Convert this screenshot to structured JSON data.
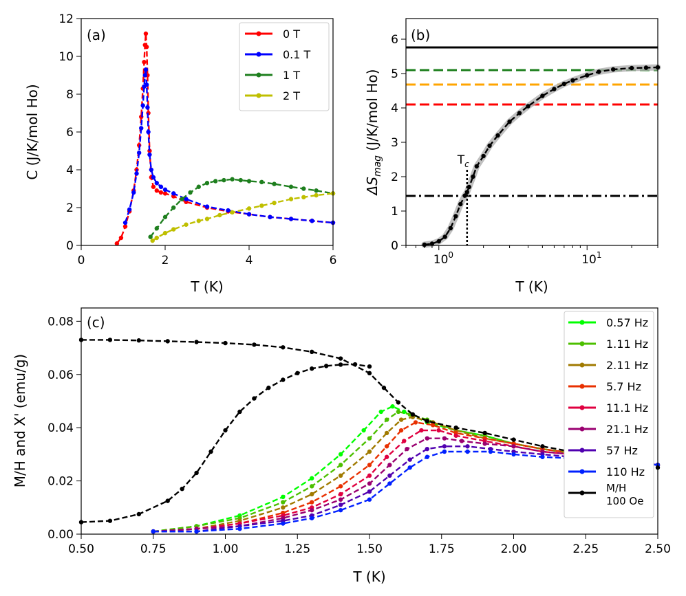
{
  "chart_data": [
    {
      "panel": "(a)",
      "type": "line",
      "xlabel": "T (K)",
      "ylabel": "C (J/K/mol Ho)",
      "xlim": [
        0,
        6
      ],
      "ylim": [
        0,
        12
      ],
      "xticks": [
        "0",
        "2",
        "4",
        "6"
      ],
      "yticks": [
        "0",
        "2",
        "4",
        "6",
        "8",
        "10",
        "12"
      ],
      "legend_position": "top-right",
      "series": [
        {
          "name": "0 T",
          "color": "#ff0000",
          "x": [
            0.85,
            0.95,
            1.05,
            1.15,
            1.25,
            1.32,
            1.38,
            1.43,
            1.47,
            1.5,
            1.52,
            1.54,
            1.56,
            1.58,
            1.6,
            1.63,
            1.67,
            1.72,
            1.8,
            1.9,
            2.0,
            2.2,
            2.5,
            3.0,
            3.5,
            4.0,
            4.5,
            5.0,
            5.5,
            6.0
          ],
          "y": [
            0.1,
            0.4,
            1.0,
            1.8,
            2.9,
            4.0,
            5.3,
            6.8,
            8.3,
            9.7,
            10.6,
            11.2,
            10.5,
            9.0,
            7.0,
            5.0,
            3.6,
            3.1,
            2.9,
            2.8,
            2.75,
            2.6,
            2.3,
            2.0,
            1.8,
            1.65,
            1.5,
            1.4,
            1.3,
            1.2
          ]
        },
        {
          "name": "0.1 T",
          "color": "#0000ff",
          "x": [
            1.05,
            1.15,
            1.25,
            1.32,
            1.38,
            1.43,
            1.47,
            1.5,
            1.52,
            1.54,
            1.56,
            1.58,
            1.6,
            1.63,
            1.67,
            1.72,
            1.8,
            1.9,
            2.0,
            2.2,
            2.5,
            3.0,
            3.5,
            4.0,
            4.5,
            5.0,
            5.5,
            6.0
          ],
          "y": [
            1.2,
            1.9,
            2.8,
            3.8,
            4.9,
            6.2,
            7.4,
            8.4,
            9.0,
            9.3,
            8.5,
            7.3,
            6.0,
            4.8,
            4.0,
            3.6,
            3.3,
            3.1,
            2.95,
            2.75,
            2.45,
            2.05,
            1.85,
            1.65,
            1.5,
            1.4,
            1.3,
            1.2
          ]
        },
        {
          "name": "1 T",
          "color": "#1e7f1e",
          "x": [
            1.65,
            1.8,
            2.0,
            2.2,
            2.4,
            2.6,
            2.8,
            3.0,
            3.2,
            3.4,
            3.6,
            3.8,
            4.0,
            4.3,
            4.6,
            5.0,
            5.3,
            5.6,
            6.0
          ],
          "y": [
            0.45,
            0.9,
            1.5,
            2.0,
            2.45,
            2.8,
            3.1,
            3.3,
            3.4,
            3.45,
            3.5,
            3.45,
            3.4,
            3.35,
            3.25,
            3.1,
            3.0,
            2.9,
            2.75
          ]
        },
        {
          "name": "2 T",
          "color": "#bfbf00",
          "x": [
            1.7,
            1.8,
            2.0,
            2.2,
            2.5,
            2.8,
            3.0,
            3.3,
            3.6,
            4.0,
            4.3,
            4.6,
            5.0,
            5.3,
            5.6,
            6.0
          ],
          "y": [
            0.25,
            0.4,
            0.65,
            0.85,
            1.1,
            1.3,
            1.4,
            1.6,
            1.75,
            1.95,
            2.1,
            2.25,
            2.45,
            2.55,
            2.65,
            2.75
          ]
        }
      ]
    },
    {
      "panel": "(b)",
      "type": "line",
      "xlabel": "T (K)",
      "ylabel_prefix": "ΔS",
      "ylabel_sub": "mag",
      "ylabel_suffix": " (J/K/mol Ho)",
      "xscale": "log",
      "xlim": [
        0.6,
        30
      ],
      "ylim": [
        0,
        6.6
      ],
      "xticks": [
        1,
        10
      ],
      "yticks": [
        "0",
        "1",
        "2",
        "3",
        "4",
        "5",
        "6"
      ],
      "annotation_main": "T",
      "annotation_sub": "c",
      "tc": 1.55,
      "hlines": [
        {
          "y": 5.76,
          "color": "#000000",
          "style": "solid"
        },
        {
          "y": 5.1,
          "color": "#1e7f1e",
          "style": "dashed"
        },
        {
          "y": 4.68,
          "color": "#ffa500",
          "style": "dashed"
        },
        {
          "y": 4.1,
          "color": "#ff0000",
          "style": "dashed"
        },
        {
          "y": 1.44,
          "color": "#000000",
          "style": "dashdot"
        }
      ],
      "series": [
        {
          "color": "#000000",
          "x": [
            0.8,
            0.9,
            1.0,
            1.1,
            1.2,
            1.3,
            1.4,
            1.5,
            1.55,
            1.6,
            1.7,
            1.8,
            2.0,
            2.2,
            2.5,
            3.0,
            3.5,
            4.0,
            5.0,
            6.0,
            7.0,
            8.0,
            10.0,
            12.0,
            15.0,
            20.0,
            25.0,
            30.0
          ],
          "y": [
            0.02,
            0.05,
            0.12,
            0.25,
            0.5,
            0.85,
            1.2,
            1.45,
            1.55,
            1.7,
            2.0,
            2.3,
            2.6,
            2.9,
            3.2,
            3.6,
            3.85,
            4.05,
            4.35,
            4.55,
            4.7,
            4.8,
            4.95,
            5.05,
            5.12,
            5.16,
            5.17,
            5.18
          ]
        }
      ]
    },
    {
      "panel": "(c)",
      "type": "line",
      "xlabel": "T (K)",
      "ylabel": "M/H and X' (emu/g)",
      "xlim": [
        0.5,
        2.5
      ],
      "ylim": [
        0,
        0.085
      ],
      "xticks": [
        "0.50",
        "0.75",
        "1.00",
        "1.25",
        "1.50",
        "1.75",
        "2.00",
        "2.25",
        "2.50"
      ],
      "yticks": [
        "0.00",
        "0.02",
        "0.04",
        "0.06",
        "0.08"
      ],
      "legend_position": "right",
      "series": [
        {
          "name": "0.57 Hz",
          "color": "#00ff00",
          "x": [
            0.75,
            0.9,
            1.05,
            1.2,
            1.3,
            1.4,
            1.48,
            1.54,
            1.58,
            1.62,
            1.7,
            1.8,
            1.9,
            2.0,
            2.1,
            2.3,
            2.5
          ],
          "y": [
            0.001,
            0.003,
            0.007,
            0.014,
            0.021,
            0.03,
            0.039,
            0.046,
            0.048,
            0.046,
            0.042,
            0.039,
            0.037,
            0.034,
            0.032,
            0.029,
            0.026
          ]
        },
        {
          "name": "1.11 Hz",
          "color": "#4cbf00",
          "x": [
            0.75,
            0.9,
            1.05,
            1.2,
            1.3,
            1.4,
            1.5,
            1.56,
            1.6,
            1.64,
            1.7,
            1.8,
            1.9,
            2.0,
            2.1,
            2.3,
            2.5
          ],
          "y": [
            0.001,
            0.003,
            0.006,
            0.012,
            0.018,
            0.026,
            0.036,
            0.043,
            0.046,
            0.045,
            0.043,
            0.039,
            0.037,
            0.034,
            0.032,
            0.029,
            0.026
          ]
        },
        {
          "name": "2.11 Hz",
          "color": "#a07a00",
          "x": [
            0.75,
            0.9,
            1.05,
            1.2,
            1.3,
            1.4,
            1.5,
            1.56,
            1.61,
            1.65,
            1.72,
            1.8,
            1.9,
            2.0,
            2.1,
            2.3,
            2.5
          ],
          "y": [
            0.001,
            0.002,
            0.005,
            0.01,
            0.015,
            0.022,
            0.031,
            0.038,
            0.043,
            0.044,
            0.042,
            0.039,
            0.036,
            0.034,
            0.032,
            0.029,
            0.026
          ]
        },
        {
          "name": "5.7 Hz",
          "color": "#e83000",
          "x": [
            0.75,
            0.9,
            1.05,
            1.2,
            1.3,
            1.4,
            1.5,
            1.56,
            1.61,
            1.66,
            1.72,
            1.8,
            1.9,
            2.0,
            2.1,
            2.3,
            2.5
          ],
          "y": [
            0.001,
            0.002,
            0.004,
            0.008,
            0.012,
            0.018,
            0.026,
            0.033,
            0.039,
            0.042,
            0.041,
            0.038,
            0.036,
            0.034,
            0.032,
            0.029,
            0.026
          ]
        },
        {
          "name": "11.1 Hz",
          "color": "#e00040",
          "x": [
            0.75,
            0.9,
            1.05,
            1.2,
            1.3,
            1.4,
            1.5,
            1.56,
            1.62,
            1.68,
            1.74,
            1.8,
            1.9,
            2.0,
            2.1,
            2.3,
            2.5
          ],
          "y": [
            0.001,
            0.002,
            0.004,
            0.007,
            0.01,
            0.015,
            0.022,
            0.029,
            0.035,
            0.039,
            0.039,
            0.037,
            0.035,
            0.033,
            0.031,
            0.029,
            0.026
          ]
        },
        {
          "name": "21.1 Hz",
          "color": "#9a0070",
          "x": [
            0.75,
            0.9,
            1.05,
            1.2,
            1.3,
            1.4,
            1.5,
            1.57,
            1.63,
            1.7,
            1.76,
            1.82,
            1.9,
            2.0,
            2.1,
            2.3,
            2.5
          ],
          "y": [
            0.001,
            0.002,
            0.003,
            0.006,
            0.009,
            0.013,
            0.019,
            0.026,
            0.032,
            0.036,
            0.036,
            0.035,
            0.034,
            0.033,
            0.031,
            0.029,
            0.026
          ]
        },
        {
          "name": "57 Hz",
          "color": "#5000b0",
          "x": [
            0.75,
            0.9,
            1.05,
            1.2,
            1.3,
            1.4,
            1.5,
            1.57,
            1.64,
            1.7,
            1.76,
            1.84,
            1.92,
            2.0,
            2.1,
            2.3,
            2.5
          ],
          "y": [
            0.001,
            0.001,
            0.003,
            0.005,
            0.007,
            0.011,
            0.016,
            0.022,
            0.028,
            0.032,
            0.033,
            0.033,
            0.032,
            0.031,
            0.03,
            0.028,
            0.026
          ]
        },
        {
          "name": "110 Hz",
          "color": "#0020ff",
          "x": [
            0.75,
            0.9,
            1.05,
            1.2,
            1.3,
            1.4,
            1.5,
            1.57,
            1.64,
            1.7,
            1.76,
            1.84,
            1.92,
            2.0,
            2.1,
            2.3,
            2.5
          ],
          "y": [
            0.001,
            0.001,
            0.002,
            0.004,
            0.006,
            0.009,
            0.013,
            0.019,
            0.025,
            0.029,
            0.031,
            0.031,
            0.031,
            0.03,
            0.029,
            0.028,
            0.026
          ]
        },
        {
          "name_line1": "M/H",
          "name_line2": "100 Oe",
          "color": "#000000",
          "x": [
            0.5,
            0.6,
            0.7,
            0.8,
            0.9,
            1.0,
            1.1,
            1.2,
            1.3,
            1.4,
            1.5,
            1.55,
            1.6,
            1.65,
            1.7,
            1.8,
            1.9,
            2.0,
            2.1,
            2.2,
            2.3,
            2.4,
            2.5
          ],
          "y": [
            0.073,
            0.073,
            0.0728,
            0.0725,
            0.0722,
            0.0718,
            0.0712,
            0.0702,
            0.0685,
            0.066,
            0.0605,
            0.055,
            0.0495,
            0.045,
            0.0425,
            0.04,
            0.038,
            0.0355,
            0.033,
            0.031,
            0.029,
            0.027,
            0.025
          ]
        },
        {
          "color": "#000000",
          "x": [
            0.5,
            0.6,
            0.7,
            0.8,
            0.85,
            0.9,
            0.95,
            1.0,
            1.05,
            1.1,
            1.15,
            1.2,
            1.25,
            1.3,
            1.35,
            1.4,
            1.45,
            1.5
          ],
          "y": [
            0.0045,
            0.005,
            0.0075,
            0.0125,
            0.017,
            0.023,
            0.031,
            0.039,
            0.046,
            0.051,
            0.055,
            0.058,
            0.0605,
            0.0622,
            0.0632,
            0.0637,
            0.0638,
            0.063
          ]
        }
      ]
    }
  ]
}
